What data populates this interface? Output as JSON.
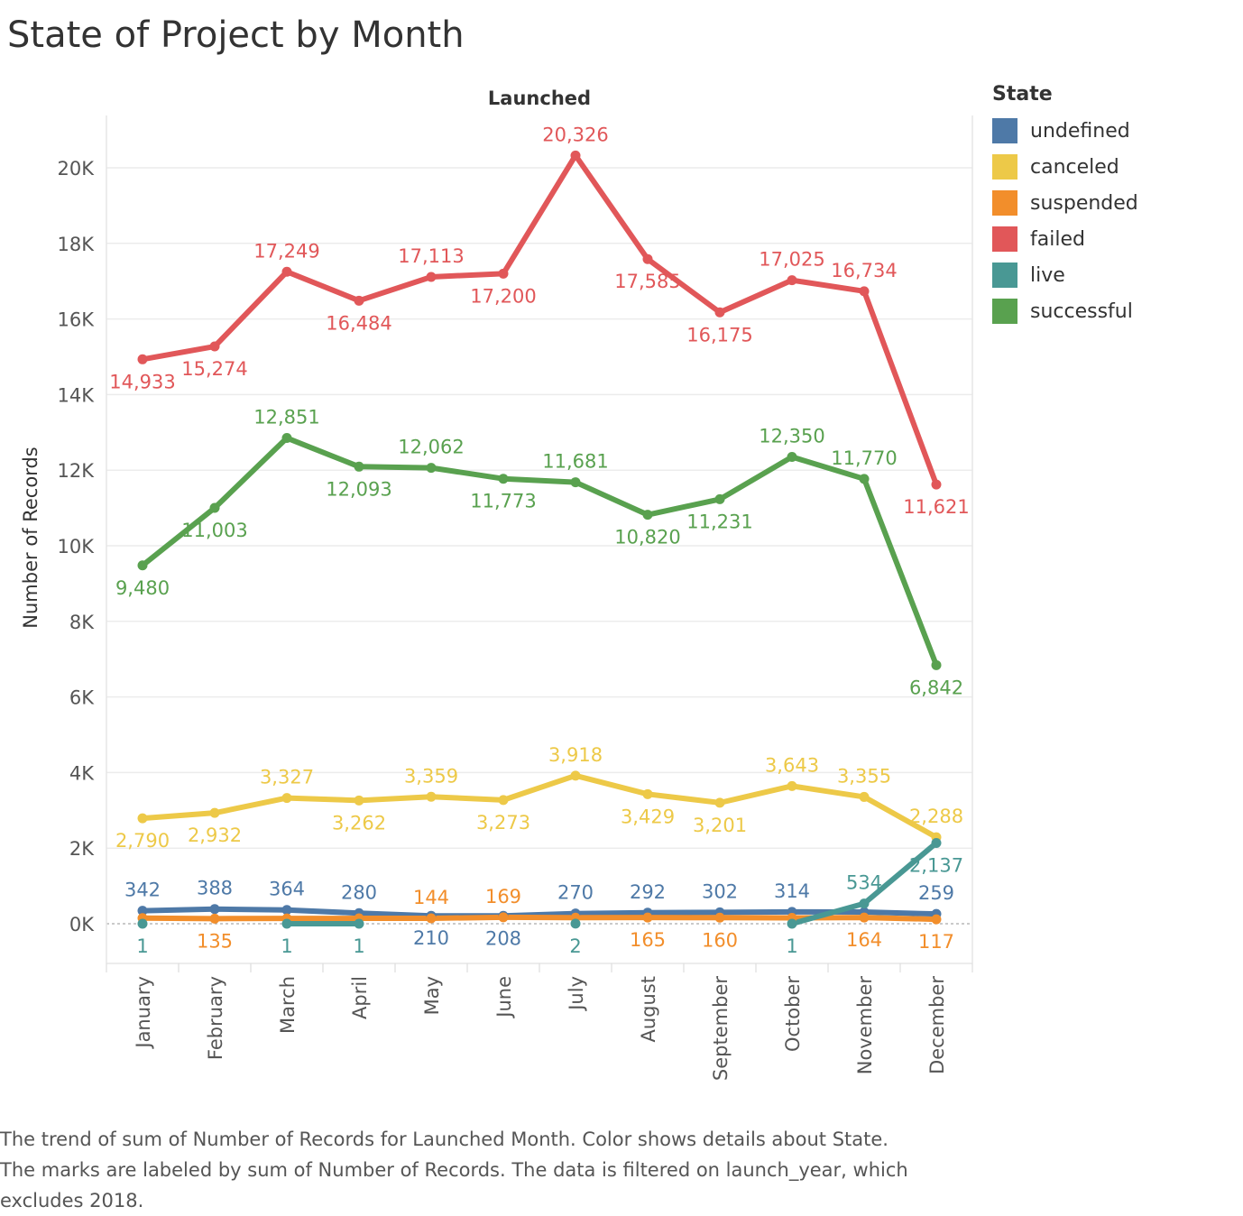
{
  "title": "State of Project by Month",
  "caption_lines": [
    "The trend of sum of Number of Records for Launched Month.  Color shows details about State.",
    "The marks are labeled by sum of Number of Records. The data is filtered on launch_year, which",
    "excludes 2018."
  ],
  "chart_data": {
    "type": "line",
    "title": "State of Project by Month",
    "xlabel": "Launched",
    "ylabel": "Number of Records",
    "ylim": [
      -1000,
      21500
    ],
    "yticks": [
      {
        "value": 0,
        "label": "0K"
      },
      {
        "value": 2000,
        "label": "2K"
      },
      {
        "value": 4000,
        "label": "4K"
      },
      {
        "value": 6000,
        "label": "6K"
      },
      {
        "value": 8000,
        "label": "8K"
      },
      {
        "value": 10000,
        "label": "10K"
      },
      {
        "value": 12000,
        "label": "12K"
      },
      {
        "value": 14000,
        "label": "14K"
      },
      {
        "value": 16000,
        "label": "16K"
      },
      {
        "value": 18000,
        "label": "18K"
      },
      {
        "value": 20000,
        "label": "20K"
      }
    ],
    "grid": true,
    "legend_title": "State",
    "legend_position": "right",
    "categories": [
      "January",
      "February",
      "March",
      "April",
      "May",
      "June",
      "July",
      "August",
      "September",
      "October",
      "November",
      "December"
    ],
    "series": [
      {
        "name": "undefined",
        "color": "#4e79a7",
        "values": [
          342,
          388,
          364,
          280,
          210,
          208,
          270,
          292,
          302,
          314,
          309,
          259
        ],
        "labels": [
          "342",
          "388",
          "364",
          "280",
          "210",
          "208",
          "270",
          "292",
          "302",
          "314",
          null,
          "259"
        ],
        "label_pos": [
          "above",
          "above",
          "above",
          "above",
          "below",
          "below",
          "above",
          "above",
          "above",
          "above",
          null,
          "above"
        ]
      },
      {
        "name": "canceled",
        "color": "#edc948",
        "values": [
          2790,
          2932,
          3327,
          3262,
          3359,
          3273,
          3918,
          3429,
          3201,
          3643,
          3355,
          2288
        ],
        "labels": [
          "2,790",
          "2,932",
          "3,327",
          "3,262",
          "3,359",
          "3,273",
          "3,918",
          "3,429",
          "3,201",
          "3,643",
          "3,355",
          "2,288"
        ],
        "label_pos": [
          "below",
          "below",
          "above",
          "below",
          "above",
          "below",
          "above",
          "below",
          "below",
          "above",
          "above",
          "above"
        ]
      },
      {
        "name": "suspended",
        "color": "#f28e2b",
        "values": [
          150,
          135,
          140,
          142,
          144,
          169,
          160,
          165,
          160,
          155,
          164,
          117
        ],
        "labels": [
          null,
          "135",
          null,
          null,
          "144",
          "169",
          null,
          "165",
          "160",
          null,
          "164",
          "117"
        ],
        "label_pos": [
          null,
          "below",
          null,
          null,
          "above",
          "above",
          null,
          "below",
          "below",
          null,
          "below",
          "below"
        ]
      },
      {
        "name": "failed",
        "color": "#e15759",
        "values": [
          14933,
          15274,
          17249,
          16484,
          17113,
          17200,
          20326,
          17585,
          16175,
          17025,
          16734,
          11621
        ],
        "labels": [
          "14,933",
          "15,274",
          "17,249",
          "16,484",
          "17,113",
          "17,200",
          "20,326",
          "17,585",
          "16,175",
          "17,025",
          "16,734",
          "11,621"
        ],
        "label_pos": [
          "below",
          "below",
          "above",
          "below",
          "above",
          "below",
          "above",
          "below",
          "below",
          "above",
          "above",
          "below"
        ]
      },
      {
        "name": "live",
        "color": "#499894",
        "values": [
          1,
          null,
          1,
          1,
          null,
          null,
          2,
          null,
          null,
          1,
          534,
          2137
        ],
        "labels": [
          "1",
          null,
          "1",
          "1",
          null,
          null,
          "2",
          null,
          null,
          "1",
          "534",
          "2,137"
        ],
        "label_pos": [
          "below",
          null,
          "below",
          "below",
          null,
          null,
          "below",
          null,
          null,
          "below",
          "above",
          "below"
        ]
      },
      {
        "name": "successful",
        "color": "#59a14f",
        "values": [
          9480,
          11003,
          12851,
          12093,
          12062,
          11773,
          11681,
          10820,
          11231,
          12350,
          11770,
          6842
        ],
        "labels": [
          "9,480",
          "11,003",
          "12,851",
          "12,093",
          "12,062",
          "11,773",
          "11,681",
          "10,820",
          "11,231",
          "12,350",
          "11,770",
          "6,842"
        ],
        "label_pos": [
          "below",
          "below",
          "above",
          "below",
          "above",
          "below",
          "above",
          "below",
          "below",
          "above",
          "above",
          "below"
        ]
      }
    ]
  }
}
